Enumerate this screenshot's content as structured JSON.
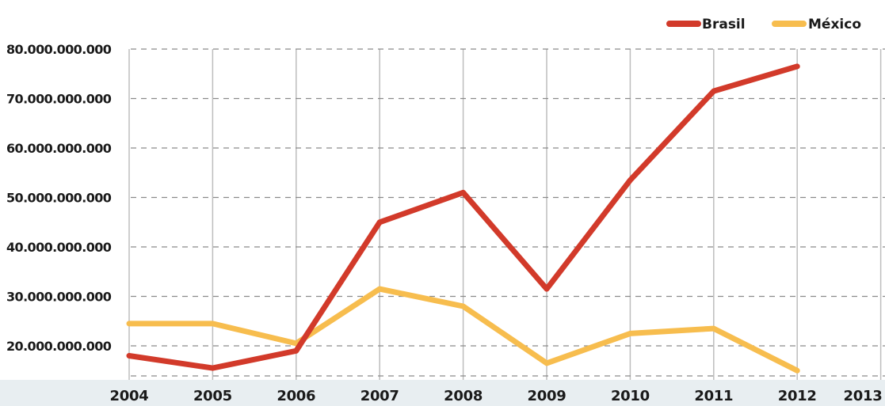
{
  "chart_data": {
    "type": "line",
    "x": [
      "2004",
      "2005",
      "2006",
      "2007",
      "2008",
      "2009",
      "2010",
      "2011",
      "2012",
      "2013"
    ],
    "series": [
      {
        "name": "Brasil",
        "color": "#d23a2a",
        "values": [
          18000000000,
          15500000000,
          19000000000,
          45000000000,
          51000000000,
          31500000000,
          53500000000,
          71500000000,
          76500000000,
          null
        ]
      },
      {
        "name": "México",
        "color": "#f7bd4e",
        "values": [
          24500000000,
          24500000000,
          20500000000,
          31500000000,
          28000000000,
          16500000000,
          22500000000,
          23500000000,
          15000000000,
          null
        ]
      }
    ],
    "ylim": [
      15000000000,
      80000000000
    ],
    "yticks": [
      "80.000.000.000",
      "70.000.000.000",
      "60.000.000.000",
      "50.000.000.000",
      "40.000.000.000",
      "30.000.000.000",
      "20.000.000.000"
    ],
    "ytick_values": [
      80000000000,
      70000000000,
      60000000000,
      50000000000,
      40000000000,
      30000000000,
      20000000000
    ],
    "legend_position": "top-right",
    "grid": true,
    "xaxis_band_color": "#e8eef1",
    "grid_color": "#bdbdbd"
  }
}
